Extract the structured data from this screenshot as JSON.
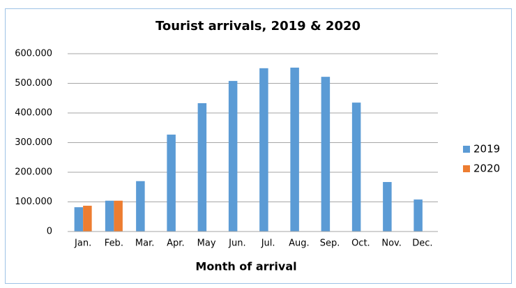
{
  "chart_data": {
    "type": "bar",
    "title": "Tourist arrivals, 2019 & 2020",
    "x_label": "Month of arrival",
    "categories": [
      "Jan.",
      "Feb.",
      "Mar.",
      "Apr.",
      "May",
      "Jun.",
      "Jul.",
      "Aug.",
      "Sep.",
      "Oct.",
      "Nov.",
      "Dec."
    ],
    "series": [
      {
        "name": "2019",
        "color": "#5b9bd5",
        "values": [
          82000,
          104000,
          170000,
          327000,
          433000,
          508000,
          551000,
          553000,
          522000,
          435000,
          167000,
          108000
        ]
      },
      {
        "name": "2020",
        "color": "#ed7d31",
        "values": [
          87000,
          104000,
          null,
          null,
          null,
          null,
          null,
          null,
          null,
          null,
          null,
          null
        ]
      }
    ],
    "ylim": [
      0,
      600000
    ],
    "yticks": [
      0,
      {
        "value": 100000,
        "label": "100.000"
      },
      {
        "value": 200000,
        "label": "200.000"
      },
      {
        "value": 300000,
        "label": "300.000"
      },
      {
        "value": 400000,
        "label": "400.000"
      },
      {
        "value": 500000,
        "label": "500.000"
      },
      {
        "value": 600000,
        "label": "600.000"
      }
    ],
    "grid": true,
    "legend": "right"
  }
}
